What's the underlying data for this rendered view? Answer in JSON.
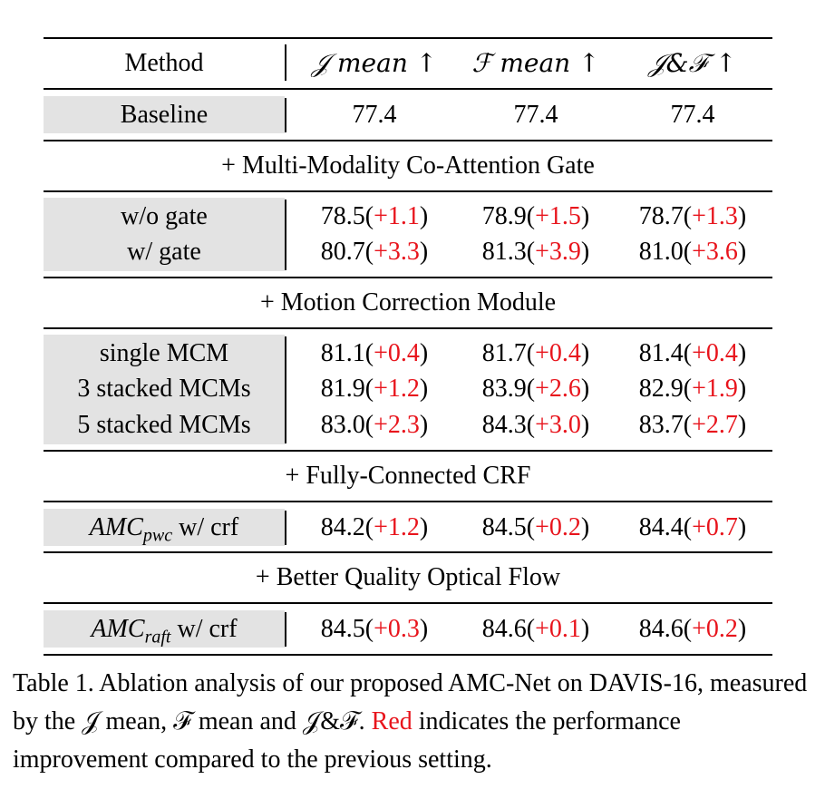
{
  "table": {
    "headers": {
      "method": "Method",
      "j_mean": "𝒥 mean ↑",
      "f_mean": "ℱ mean ↑",
      "jf": "𝒥&ℱ ↑"
    },
    "baseline": {
      "method": "Baseline",
      "j": "77.4",
      "f": "77.4",
      "jf": "77.4"
    },
    "sections": [
      {
        "title": "+ Multi-Modality Co-Attention Gate",
        "rows": [
          {
            "method": "w/o gate",
            "j": "78.5",
            "j_d": "+1.1",
            "f": "78.9",
            "f_d": "+1.5",
            "jf": "78.7",
            "jf_d": "+1.3"
          },
          {
            "method": "w/ gate",
            "j": "80.7",
            "j_d": "+3.3",
            "f": "81.3",
            "f_d": "+3.9",
            "jf": "81.0",
            "jf_d": "+3.6"
          }
        ]
      },
      {
        "title": "+ Motion Correction Module",
        "rows": [
          {
            "method": "single MCM",
            "j": "81.1",
            "j_d": "+0.4",
            "f": "81.7",
            "f_d": "+0.4",
            "jf": "81.4",
            "jf_d": "+0.4"
          },
          {
            "method": "3 stacked MCMs",
            "j": "81.9",
            "j_d": "+1.2",
            "f": "83.9",
            "f_d": "+2.6",
            "jf": "82.9",
            "jf_d": "+1.9"
          },
          {
            "method": "5 stacked MCMs",
            "j": "83.0",
            "j_d": "+2.3",
            "f": "84.3",
            "f_d": "+3.0",
            "jf": "83.7",
            "jf_d": "+2.7"
          }
        ]
      },
      {
        "title": "+ Fully-Connected CRF",
        "rows": [
          {
            "method_main": "AMC",
            "method_sub": "pwc",
            "method_rest": " w/ crf",
            "j": "84.2",
            "j_d": "+1.2",
            "f": "84.5",
            "f_d": "+0.2",
            "jf": "84.4",
            "jf_d": "+0.7"
          }
        ]
      },
      {
        "title": "+ Better Quality Optical Flow",
        "rows": [
          {
            "method_main": "AMC",
            "method_sub": "raft",
            "method_rest": " w/ crf",
            "j": "84.5",
            "j_d": "+0.3",
            "f": "84.6",
            "f_d": "+0.1",
            "jf": "84.6",
            "jf_d": "+0.2"
          }
        ]
      }
    ]
  },
  "caption": {
    "part1": "Table 1. Ablation analysis of our proposed AMC-Net on DAVIS-16, measured by the 𝒥 mean, ℱ mean and 𝒥&ℱ. ",
    "red_word": "Red",
    "part2": " indicates the performance improvement compared to the previous setting.",
    "red_color": "#e8141c"
  }
}
